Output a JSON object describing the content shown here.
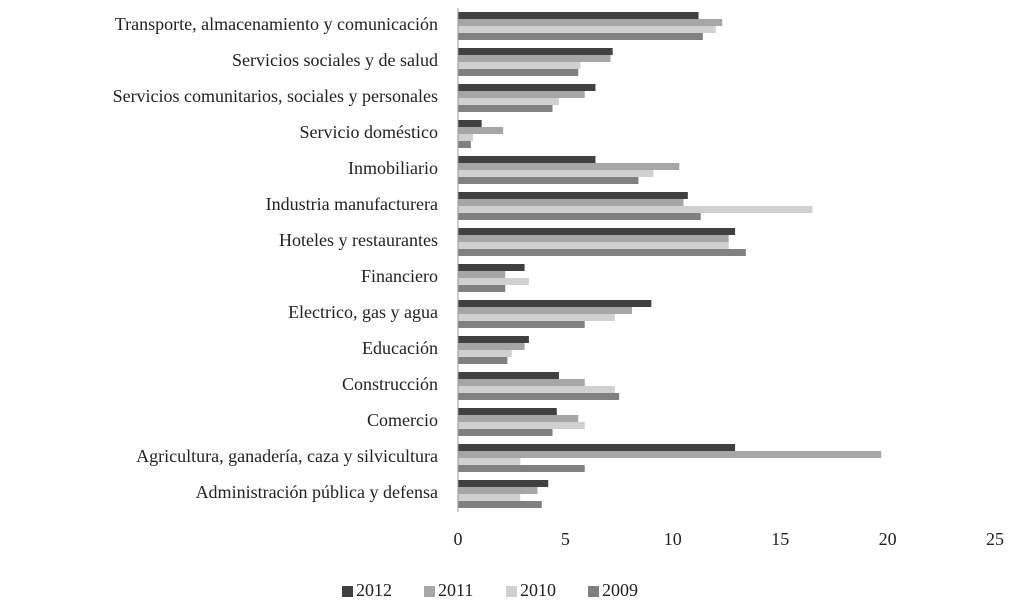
{
  "chart_data": {
    "type": "hbar",
    "categories": [
      "Transporte, almacenamiento y comunicación",
      "Servicios sociales y de salud",
      "Servicios comunitarios, sociales y personales",
      "Servicio doméstico",
      "Inmobiliario",
      "Industria manufacturera",
      "Hoteles y restaurantes",
      "Financiero",
      "Electrico, gas y agua",
      "Educación",
      "Construcción",
      "Comercio",
      "Agricultura, ganadería, caza y silvicultura",
      "Administración pública y defensa"
    ],
    "series": [
      {
        "name": "2012",
        "color": "#404040",
        "values": [
          11.2,
          7.2,
          6.4,
          1.1,
          6.4,
          10.7,
          12.9,
          3.1,
          9.0,
          3.3,
          4.7,
          4.6,
          12.9,
          4.2
        ]
      },
      {
        "name": "2011",
        "color": "#a6a6a6",
        "values": [
          12.3,
          7.1,
          5.9,
          2.1,
          10.3,
          10.5,
          12.6,
          2.2,
          8.1,
          3.1,
          5.9,
          5.6,
          19.7,
          3.7
        ]
      },
      {
        "name": "2010",
        "color": "#d0d0d0",
        "values": [
          12.0,
          5.7,
          4.7,
          0.7,
          9.1,
          16.5,
          12.6,
          3.3,
          7.3,
          2.5,
          7.3,
          5.9,
          2.9,
          2.9
        ]
      },
      {
        "name": "2009",
        "color": "#808080",
        "values": [
          11.4,
          5.6,
          4.4,
          0.6,
          8.4,
          11.3,
          13.4,
          2.2,
          5.9,
          2.3,
          7.5,
          4.4,
          5.9,
          3.9
        ]
      }
    ],
    "xlim": [
      0,
      25
    ],
    "xticks": [
      0,
      5,
      10,
      15,
      20,
      25
    ],
    "legend": "bottom"
  }
}
